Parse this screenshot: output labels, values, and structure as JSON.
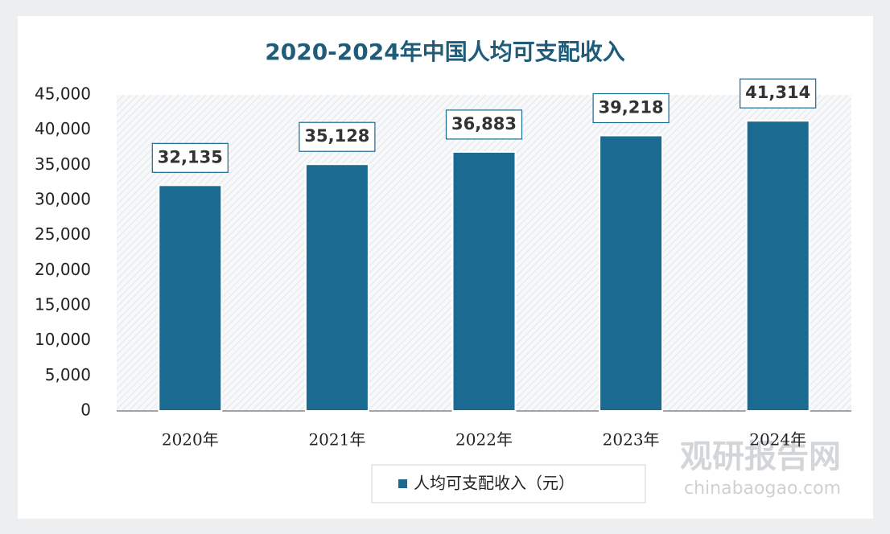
{
  "chart_data": {
    "type": "bar",
    "title": "2020-2024年中国人均可支配收入",
    "categories": [
      "2020年",
      "2021年",
      "2022年",
      "2023年",
      "2024年"
    ],
    "series": [
      {
        "name": "人均可支配收入（元）",
        "color": "#1a6a91",
        "values": [
          32135,
          35128,
          36883,
          39218,
          41314
        ],
        "value_labels": [
          "32,135",
          "35,128",
          "36,883",
          "39,218",
          "41,314"
        ]
      }
    ],
    "ylim": [
      0,
      45000
    ],
    "yticks": [
      0,
      {
        "value": 5000,
        "label": "5,000"
      },
      {
        "value": 10000,
        "label": "10,000"
      },
      {
        "value": 15000,
        "label": "15,000"
      },
      {
        "value": 20000,
        "label": "20,000"
      },
      {
        "value": 25000,
        "label": "25,000"
      },
      {
        "value": 30000,
        "label": "30,000"
      },
      {
        "value": 35000,
        "label": "35,000"
      },
      {
        "value": 40000,
        "label": "40,000"
      },
      {
        "value": 45000,
        "label": "45,000"
      }
    ],
    "grid": false,
    "legend": "bottom",
    "watermark": [
      "观研报告网",
      "chinabaogao.com"
    ]
  }
}
